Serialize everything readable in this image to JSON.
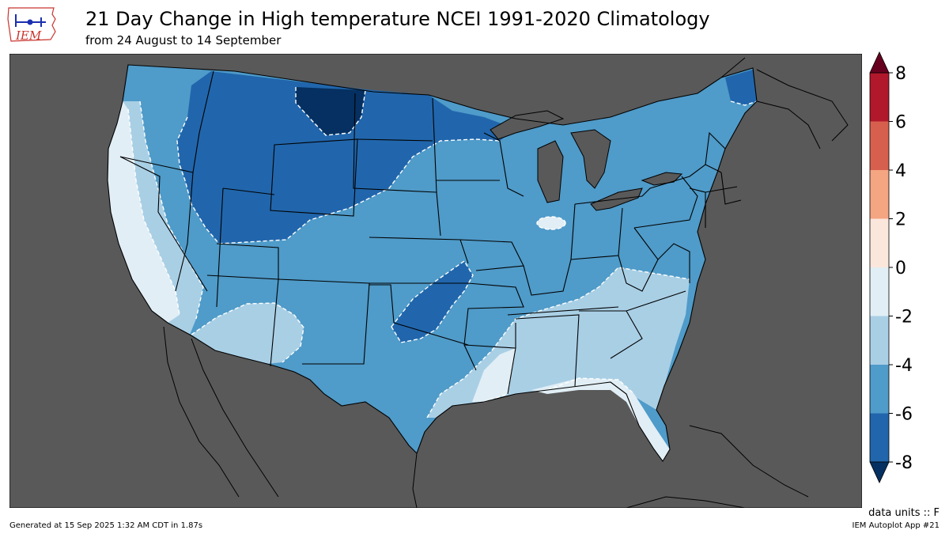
{
  "header": {
    "logo_text": "IEM",
    "title": "21 Day Change in High temperature NCEI 1991-2020 Climatology",
    "subtitle": "from 24 August to 14 September"
  },
  "colorbar": {
    "tick_labels": [
      "8",
      "6",
      "4",
      "2",
      "0",
      "-2",
      "-4",
      "-6",
      "-8"
    ],
    "bins": [
      {
        "range": [
          6,
          8
        ],
        "color": "#b2182b"
      },
      {
        "range": [
          4,
          6
        ],
        "color": "#d6604d"
      },
      {
        "range": [
          2,
          4
        ],
        "color": "#f4a582"
      },
      {
        "range": [
          0,
          2
        ],
        "color": "#fbe6dc"
      },
      {
        "range": [
          -2,
          0
        ],
        "color": "#e1eef5"
      },
      {
        "range": [
          -4,
          -2
        ],
        "color": "#a9cfe5"
      },
      {
        "range": [
          -6,
          -4
        ],
        "color": "#4f9bc9"
      },
      {
        "range": [
          -8,
          -6
        ],
        "color": "#2166ac"
      }
    ],
    "over_color": "#67001f",
    "under_color": "#053061"
  },
  "map": {
    "background_color": "#595959",
    "region": "Contiguous United States"
  },
  "units_label": "data units :: F",
  "footer": {
    "generated": "Generated at 15 Sep 2025 1:32 AM CDT in 1.87s",
    "app": "IEM Autoplot App #21"
  }
}
